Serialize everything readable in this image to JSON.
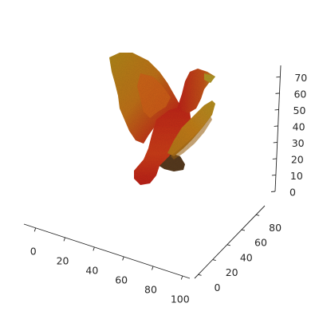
{
  "chart_data": {
    "type": "scatter",
    "subtype": "3d-voxel-point-cloud",
    "title": "",
    "xlabel": "",
    "ylabel": "",
    "zlabel": "",
    "grid": false,
    "pane_background": "none",
    "x_ticks": [
      "0",
      "20",
      "40",
      "60",
      "80",
      "100"
    ],
    "y_ticks": [
      "0",
      "20",
      "40",
      "60",
      "80"
    ],
    "z_ticks": [
      "0",
      "10",
      "20",
      "30",
      "40",
      "50",
      "60",
      "70"
    ],
    "xlim": [
      -8,
      105
    ],
    "ylim": [
      -5,
      92
    ],
    "zlim": [
      0,
      77
    ],
    "colormap": [
      "#6b3a1f",
      "#c4261b",
      "#d85a1a",
      "#c99a1c",
      "#a89232"
    ],
    "object": "phoenix-like bird sculpture with raised wings"
  }
}
